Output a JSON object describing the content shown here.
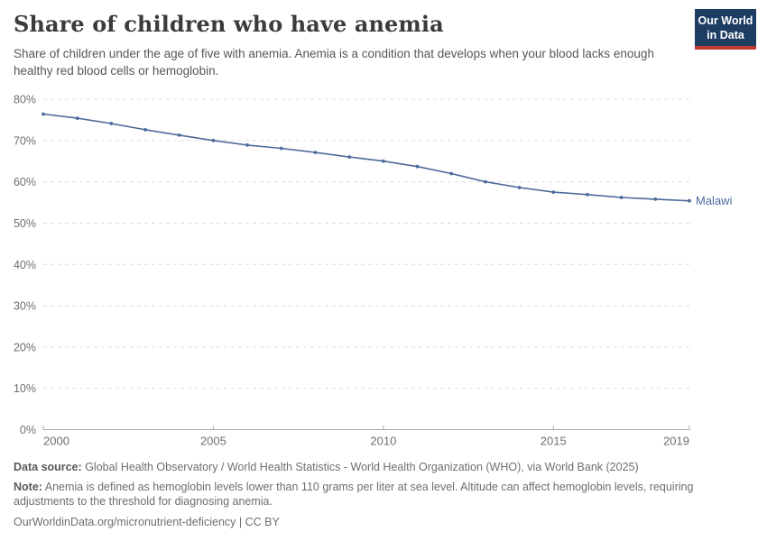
{
  "header": {
    "title": "Share of children who have anemia",
    "subtitle": "Share of children under the age of five with anemia. Anemia is a condition that develops when your blood lacks enough healthy red blood cells or hemoglobin.",
    "logo": {
      "line1": "Our World",
      "line2": "in Data",
      "bg_color": "#1d3d63",
      "accent_color": "#c13a30"
    }
  },
  "chart_data": {
    "type": "line",
    "title": "Share of children who have anemia",
    "xlabel": "",
    "ylabel": "",
    "x": [
      2000,
      2001,
      2002,
      2003,
      2004,
      2005,
      2006,
      2007,
      2008,
      2009,
      2010,
      2011,
      2012,
      2013,
      2014,
      2015,
      2016,
      2017,
      2018,
      2019
    ],
    "series": [
      {
        "name": "Malawi",
        "color": "#4c6a9c",
        "values": [
          76.4,
          75.4,
          74.1,
          72.6,
          71.3,
          70.0,
          68.9,
          68.1,
          67.1,
          66.0,
          65.0,
          63.7,
          62.0,
          60.0,
          58.6,
          57.5,
          56.9,
          56.2,
          55.8,
          55.4
        ]
      }
    ],
    "xlim": [
      2000,
      2019
    ],
    "ylim": [
      0,
      80
    ],
    "x_ticks": [
      2000,
      2005,
      2010,
      2015,
      2019
    ],
    "y_ticks": [
      0,
      10,
      20,
      30,
      40,
      50,
      60,
      70,
      80
    ],
    "y_tick_suffix": "%",
    "grid": "horizontal-dashed",
    "legend_position": "end-of-line-label",
    "colors": {
      "grid": "#dcdcdc",
      "axis": "#a8a8a8",
      "tick_text": "#6f6f6f"
    }
  },
  "footer": {
    "data_source_label": "Data source:",
    "data_source_text": " Global Health Observatory / World Health Statistics - World Health Organization (WHO), via World Bank (2025)",
    "note_label": "Note:",
    "note_text": " Anemia is defined as hemoglobin levels lower than 110 grams per liter at sea level. Altitude can affect hemoglobin levels, requiring adjustments to the threshold for diagnosing anemia.",
    "license": "OurWorldinData.org/micronutrient-deficiency | CC BY"
  }
}
